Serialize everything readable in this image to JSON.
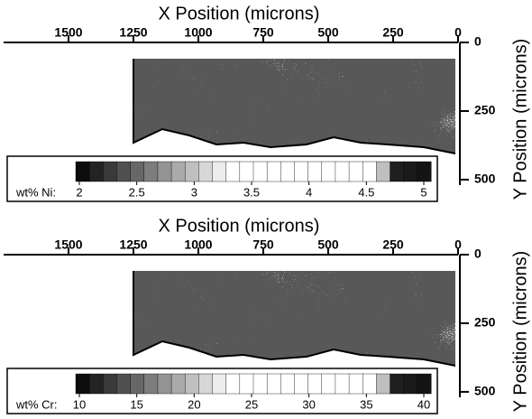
{
  "chart_data": [
    {
      "type": "map",
      "xlabel": "X Position (microns)",
      "ylabel": "Y Position (microns)",
      "xlim": [
        1750,
        0
      ],
      "xticks": [
        1500,
        1250,
        1000,
        750,
        500,
        250,
        0
      ],
      "ylim": [
        0,
        520
      ],
      "yticks": [
        0,
        250,
        500
      ],
      "colorbar": {
        "label": "wt% Ni:",
        "lim": [
          2,
          5
        ],
        "ticks": [
          2,
          2.5,
          3,
          3.5,
          4,
          4.5,
          5
        ]
      }
    },
    {
      "type": "map",
      "xlabel": "X Position (microns)",
      "ylabel": "Y Position (microns)",
      "xlim": [
        1750,
        0
      ],
      "xticks": [
        1500,
        1250,
        1000,
        750,
        500,
        250,
        0
      ],
      "ylim": [
        0,
        520
      ],
      "yticks": [
        0,
        250,
        500
      ],
      "colorbar": {
        "label": "wt% Cr:",
        "lim": [
          10,
          40
        ],
        "ticks": [
          10,
          15,
          20,
          25,
          30,
          35,
          40
        ]
      }
    }
  ]
}
